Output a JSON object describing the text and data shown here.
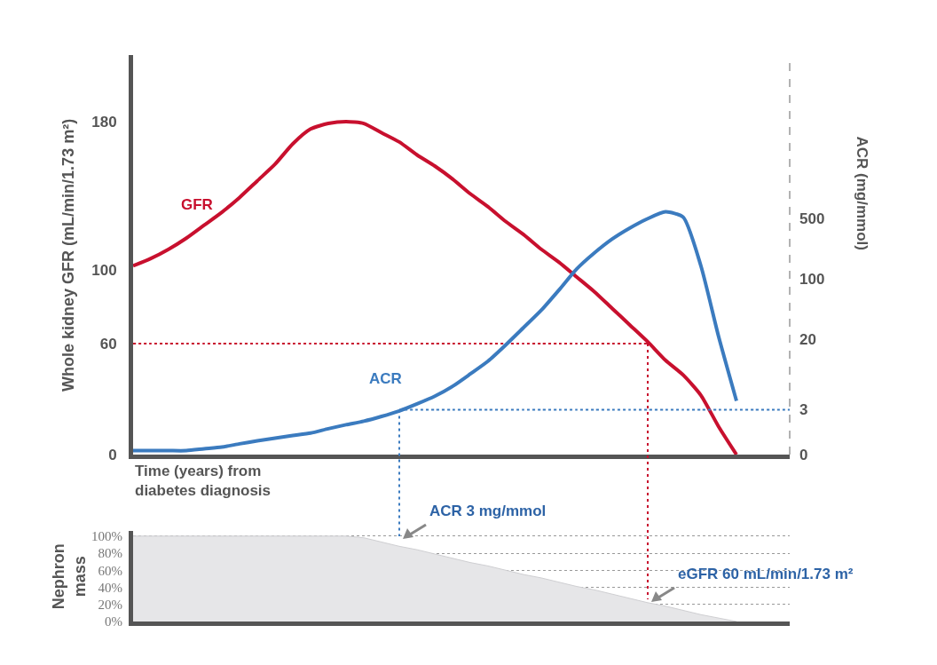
{
  "chart_data": [
    {
      "type": "line",
      "ylabel": "Whole kidney GFR (mL/min/1.73 m²)",
      "y2label": "ACR (mg/mmol)",
      "xlabel": "Time (years) from diabetes diagnosis",
      "categories": [
        null,
        null,
        null,
        null,
        null,
        null,
        null,
        null,
        null,
        null,
        null,
        null,
        null,
        null,
        null,
        null,
        null,
        null,
        null,
        null,
        null,
        null,
        null,
        null,
        null,
        null,
        null,
        null,
        null,
        null,
        null,
        null,
        null,
        null,
        null,
        null,
        null,
        null
      ],
      "ylim": [
        0,
        216
      ],
      "yticks": [
        0,
        60,
        100,
        180
      ],
      "y2lim": [
        0,
        40000
      ],
      "y2ticks": [
        0,
        3,
        20,
        100,
        500
      ],
      "log": "y2",
      "marker": "none",
      "line_style": "solid",
      "series": [
        {
          "name": "GFR",
          "color": "#c8102e",
          "values": [
            102,
            106,
            111,
            117,
            124,
            131,
            139,
            148,
            157,
            168,
            176,
            179,
            180,
            179,
            174,
            169,
            162,
            156,
            149,
            141,
            134,
            126,
            119,
            111,
            104,
            96,
            88,
            79,
            70,
            61,
            51,
            43,
            32,
            15,
            0,
            null,
            null,
            null
          ]
        },
        {
          "name": "ACR",
          "color": "#3b7bbf",
          "axis": "y2",
          "values": [
            1,
            1,
            1,
            1,
            1.05,
            1.1,
            1.2,
            1.3,
            1.4,
            1.5,
            1.6,
            1.8,
            2,
            2.2,
            2.5,
            2.9,
            3.5,
            4.3,
            5.6,
            7.8,
            11,
            17,
            27,
            43,
            74,
            130,
            200,
            290,
            390,
            500,
            600,
            520,
            140,
            21,
            3.8,
            null,
            null,
            null
          ]
        },
        {
          "color": "#c8102e",
          "line_style": "dotted",
          "values": [
            60,
            60,
            60,
            60,
            60,
            60,
            60,
            60,
            60,
            60,
            60,
            60,
            60,
            60,
            60,
            60,
            60,
            60,
            60,
            60,
            60,
            60,
            60,
            60,
            60,
            60,
            60,
            60,
            60,
            60,
            null,
            null,
            null,
            null,
            null,
            null,
            null,
            null
          ]
        },
        {
          "color": "#3b7bbf",
          "line_style": "dotted",
          "axis": "y2",
          "values": [
            null,
            null,
            null,
            null,
            null,
            null,
            null,
            null,
            null,
            null,
            null,
            null,
            null,
            null,
            null,
            3,
            3,
            3,
            3,
            3,
            3,
            3,
            3,
            3,
            3,
            3,
            3,
            3,
            3,
            3,
            3,
            3,
            3,
            3,
            3,
            3,
            3,
            3
          ]
        }
      ]
    },
    {
      "type": "area",
      "ylabel": "Nephron mass",
      "color": "#e6e6e8",
      "categories": [
        null,
        null,
        null,
        null,
        null,
        null,
        null,
        null,
        null,
        null,
        null,
        null,
        null,
        null,
        null,
        null,
        null,
        null,
        null,
        null,
        null,
        null,
        null,
        null,
        null,
        null,
        null,
        null,
        null,
        null,
        null,
        null,
        null,
        null,
        null,
        null,
        null,
        null
      ],
      "values": [
        100,
        100,
        100,
        100,
        100,
        100,
        100,
        100,
        100,
        100,
        100,
        100,
        100,
        98,
        93,
        88,
        84,
        79,
        74,
        69,
        65,
        60,
        55,
        51,
        46,
        41,
        37,
        32,
        27,
        22,
        18,
        13,
        8,
        4,
        0,
        null,
        null,
        null
      ],
      "ylim": [
        0,
        106
      ],
      "yticks": [
        {
          "value": 0,
          "label": "0%"
        },
        {
          "value": 20,
          "label": "20%"
        },
        {
          "value": 40,
          "label": "40%"
        },
        {
          "value": 60,
          "label": "60%"
        },
        {
          "value": 80,
          "label": "80%"
        },
        {
          "value": 100,
          "label": "100%"
        }
      ],
      "grid": "y",
      "annotations": [
        "ACR 3 mg/mmol",
        "eGFR 60 mL/min/1.73 m²"
      ]
    }
  ]
}
